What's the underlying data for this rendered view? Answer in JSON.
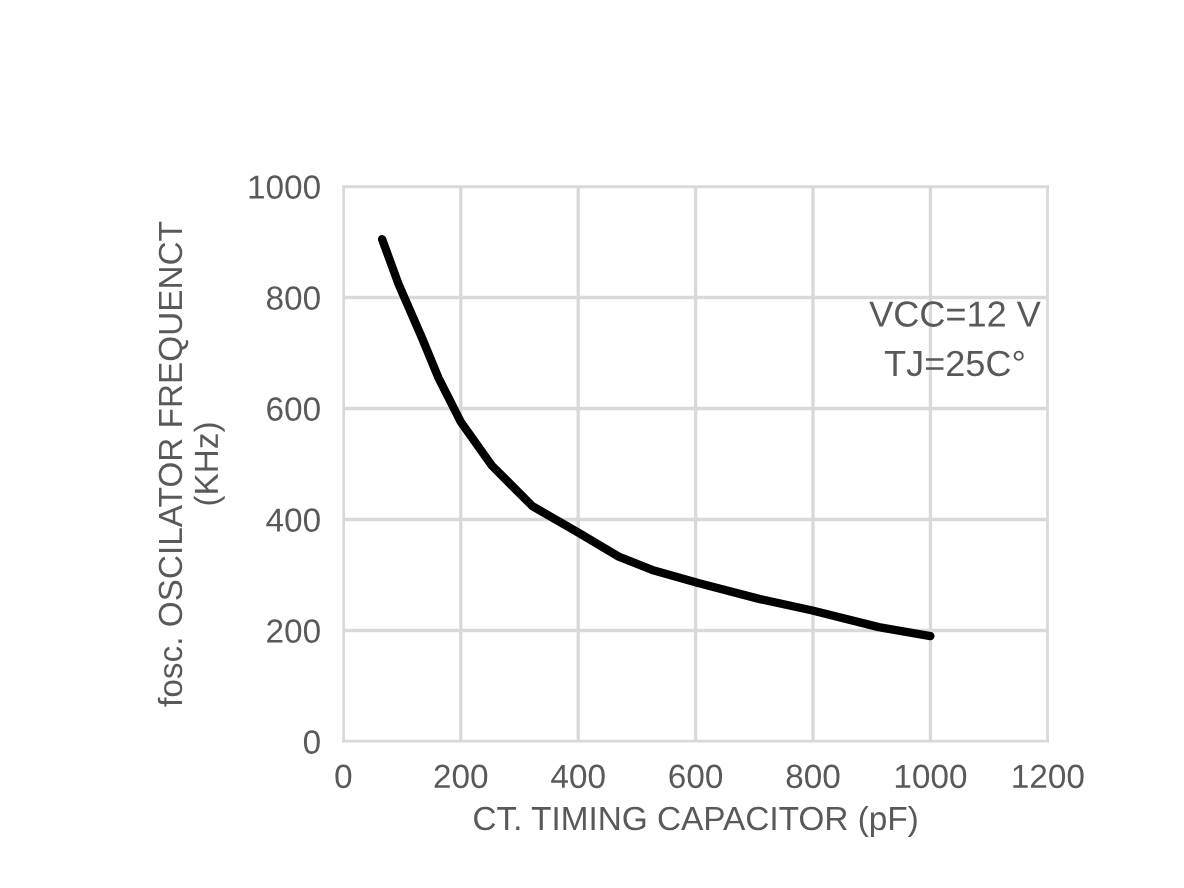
{
  "chart_data": {
    "type": "line",
    "xlabel": "CT. TIMING CAPACITOR (pF)",
    "ylabel": "fosc. OSCILATOR FREQUENCT\n(KHz)",
    "annotations": [
      "VCC=12 V\nTJ=25C°"
    ],
    "x": [
      66,
      94,
      134,
      162,
      200,
      253,
      322,
      401,
      469,
      526,
      606,
      708,
      799,
      912,
      1000
    ],
    "series": [
      {
        "color": "#000000",
        "values": [
          905,
          824,
          727,
          655,
          576,
          497,
          424,
          376,
          333,
          309,
          285,
          257,
          236,
          206,
          190
        ]
      }
    ],
    "xlim": [
      0,
      1200
    ],
    "xticks": [
      0,
      200,
      400,
      600,
      800,
      1000,
      1200
    ],
    "ylim": [
      0,
      1000
    ],
    "yticks": [
      0,
      200,
      400,
      600,
      800,
      1000
    ],
    "grid": true,
    "marker": "none",
    "line_style": "solid",
    "legend": false
  }
}
